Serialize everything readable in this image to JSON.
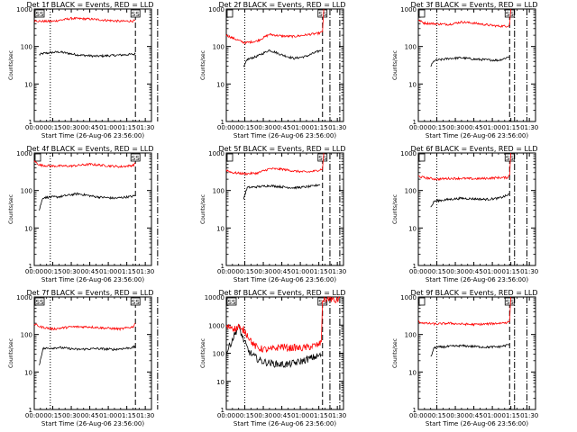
{
  "chart_data": [
    {
      "type": "line",
      "title": "Det 1f BLACK = Events, RED = LLD",
      "xlabel": "Start Time (26-Aug-06 23:56:00)",
      "ylabel": "Counts/sec",
      "xticks": [
        "00:00",
        "00:15",
        "00:30",
        "00:45",
        "01:00",
        "01:15",
        "01:30"
      ],
      "yticks": [
        "1",
        "10",
        "100",
        "1000"
      ],
      "ylim": [
        1,
        1000
      ],
      "yscale": "log",
      "markers": [
        "SS",
        "SS"
      ],
      "series": [
        {
          "color": "#000000",
          "x": [
            4,
            7,
            20,
            35,
            50,
            65,
            80,
            82
          ],
          "y": [
            60,
            65,
            72,
            60,
            55,
            58,
            62,
            63
          ]
        },
        {
          "color": "#ff0000",
          "x": [
            0,
            5,
            15,
            30,
            45,
            55,
            70,
            80,
            82
          ],
          "y": [
            500,
            470,
            470,
            560,
            540,
            510,
            470,
            480,
            490
          ]
        }
      ]
    },
    {
      "type": "line",
      "title": "Det 2f BLACK = Events, RED = LLD",
      "xlabel": "Start Time (26-Aug-06 23:56:00)",
      "ylabel": "Counts/sec",
      "xticks": [
        "00:00",
        "00:15",
        "00:30",
        "00:45",
        "01:00",
        "01:15",
        "01:30"
      ],
      "yticks": [
        "1",
        "10",
        "100",
        "1000"
      ],
      "ylim": [
        1,
        1000
      ],
      "yscale": "log",
      "markers": [
        "SS"
      ],
      "series": [
        {
          "color": "#000000",
          "x": [
            14,
            17,
            25,
            35,
            45,
            55,
            65,
            70,
            75,
            77
          ],
          "y": [
            27,
            45,
            55,
            80,
            60,
            48,
            55,
            65,
            75,
            80
          ]
        },
        {
          "color": "#ff0000",
          "x": [
            0,
            5,
            10,
            15,
            25,
            35,
            45,
            55,
            65,
            75,
            78,
            79
          ],
          "y": [
            200,
            170,
            145,
            125,
            140,
            210,
            190,
            185,
            205,
            225,
            245,
            1000
          ]
        }
      ]
    },
    {
      "type": "line",
      "title": "Det 3f BLACK = Events, RED = LLD",
      "xlabel": "Start Time (26-Aug-06 23:56:00)",
      "ylabel": "Counts/sec",
      "xticks": [
        "00:00",
        "00:15",
        "00:30",
        "00:45",
        "01:00",
        "01:15",
        "01:30"
      ],
      "yticks": [
        "1",
        "10",
        "100",
        "1000"
      ],
      "ylim": [
        1,
        1000
      ],
      "yscale": "log",
      "markers": [
        "SS"
      ],
      "series": [
        {
          "color": "#000000",
          "x": [
            10,
            13,
            25,
            35,
            45,
            55,
            65,
            70,
            74
          ],
          "y": [
            30,
            42,
            48,
            50,
            46,
            44,
            43,
            48,
            55
          ]
        },
        {
          "color": "#ff0000",
          "x": [
            0,
            5,
            15,
            25,
            35,
            45,
            55,
            65,
            72,
            74,
            75
          ],
          "y": [
            500,
            420,
            400,
            390,
            450,
            420,
            380,
            350,
            350,
            380,
            1000
          ]
        }
      ]
    },
    {
      "type": "line",
      "title": "Det 4f BLACK = Events, RED = LLD",
      "xlabel": "Start Time (26-Aug-06 23:56:00)",
      "ylabel": "Counts/sec",
      "xticks": [
        "00:00",
        "00:15",
        "00:30",
        "00:45",
        "01:00",
        "01:15",
        "01:30"
      ],
      "yticks": [
        "1",
        "10",
        "100",
        "1000"
      ],
      "ylim": [
        1,
        1000
      ],
      "yscale": "log",
      "markers": [
        "SS"
      ],
      "series": [
        {
          "color": "#000000",
          "x": [
            4,
            7,
            20,
            35,
            50,
            65,
            80,
            82
          ],
          "y": [
            30,
            65,
            68,
            82,
            68,
            62,
            70,
            75
          ]
        },
        {
          "color": "#ff0000",
          "x": [
            0,
            5,
            15,
            30,
            45,
            55,
            70,
            80,
            82
          ],
          "y": [
            600,
            470,
            450,
            450,
            500,
            470,
            430,
            470,
            520
          ]
        }
      ]
    },
    {
      "type": "line",
      "title": "Det 5f BLACK = Events, RED = LLD",
      "xlabel": "Start Time (26-Aug-06 23:56:00)",
      "ylabel": "Counts/sec",
      "xticks": [
        "00:00",
        "00:15",
        "00:30",
        "00:45",
        "01:00",
        "01:15",
        "01:30"
      ],
      "yticks": [
        "1",
        "10",
        "100",
        "1000"
      ],
      "ylim": [
        1,
        1000
      ],
      "yscale": "log",
      "markers": [
        "SS"
      ],
      "series": [
        {
          "color": "#000000",
          "x": [
            14,
            17,
            25,
            35,
            45,
            55,
            65,
            70,
            76
          ],
          "y": [
            60,
            120,
            125,
            135,
            125,
            118,
            125,
            130,
            145
          ]
        },
        {
          "color": "#ff0000",
          "x": [
            0,
            5,
            15,
            25,
            35,
            45,
            55,
            65,
            72,
            76,
            78,
            79
          ],
          "y": [
            350,
            300,
            280,
            290,
            380,
            370,
            330,
            310,
            330,
            360,
            380,
            1000
          ]
        }
      ]
    },
    {
      "type": "line",
      "title": "Det 6f BLACK = Events, RED = LLD",
      "xlabel": "Start Time (26-Aug-06 23:56:00)",
      "ylabel": "Counts/sec",
      "xticks": [
        "00:00",
        "00:15",
        "00:30",
        "00:45",
        "01:00",
        "01:15",
        "01:30"
      ],
      "yticks": [
        "1",
        "10",
        "100",
        "1000"
      ],
      "ylim": [
        1,
        1000
      ],
      "yscale": "log",
      "markers": [
        "SS"
      ],
      "series": [
        {
          "color": "#000000",
          "x": [
            10,
            13,
            25,
            35,
            45,
            55,
            65,
            70,
            74
          ],
          "y": [
            35,
            52,
            58,
            62,
            60,
            58,
            62,
            70,
            80
          ]
        },
        {
          "color": "#ff0000",
          "x": [
            0,
            5,
            15,
            25,
            35,
            45,
            55,
            65,
            72,
            74,
            75
          ],
          "y": [
            240,
            220,
            200,
            210,
            210,
            205,
            210,
            220,
            220,
            260,
            1000
          ]
        }
      ]
    },
    {
      "type": "line",
      "title": "Det 7f BLACK = Events, RED = LLD",
      "xlabel": "Start Time (26-Aug-06 23:56:00)",
      "ylabel": "Counts/sec",
      "xticks": [
        "00:00",
        "00:15",
        "00:30",
        "00:45",
        "01:00",
        "01:15",
        "01:30"
      ],
      "yticks": [
        "1",
        "10",
        "100",
        "1000"
      ],
      "ylim": [
        1,
        1000
      ],
      "yscale": "log",
      "markers": [
        "SS",
        "SS"
      ],
      "series": [
        {
          "color": "#000000",
          "x": [
            4,
            7,
            20,
            35,
            50,
            65,
            80,
            82
          ],
          "y": [
            15,
            42,
            45,
            40,
            42,
            40,
            45,
            48
          ]
        },
        {
          "color": "#ff0000",
          "x": [
            0,
            5,
            15,
            30,
            45,
            55,
            70,
            80,
            82
          ],
          "y": [
            190,
            160,
            140,
            160,
            160,
            150,
            140,
            160,
            200
          ]
        }
      ]
    },
    {
      "type": "line",
      "title": "Det 8f BLACK = Events, RED = LLD",
      "xlabel": "Start Time (26-Aug-06 23:56:00)",
      "ylabel": "Counts/sec",
      "xticks": [
        "00:00",
        "00:15",
        "00:30",
        "00:45",
        "01:00",
        "01:15",
        "01:30"
      ],
      "yticks": [
        "1",
        "10",
        "100",
        "1000",
        "10000"
      ],
      "ylim": [
        1,
        10000
      ],
      "yscale": "log",
      "markers": [
        "SS",
        "SS"
      ],
      "series": [
        {
          "color": "#000000",
          "x": [
            0,
            4,
            8,
            10,
            14,
            18,
            22,
            26,
            30,
            35,
            40,
            45,
            50,
            55,
            60,
            65,
            70,
            75,
            77
          ],
          "y": [
            100,
            250,
            600,
            900,
            300,
            120,
            80,
            60,
            50,
            45,
            42,
            40,
            40,
            45,
            50,
            60,
            70,
            80,
            90
          ]
        },
        {
          "color": "#ff0000",
          "x": [
            0,
            4,
            8,
            10,
            12,
            14,
            18,
            22,
            26,
            30,
            35,
            40,
            45,
            50,
            55,
            60,
            65,
            70,
            75,
            77,
            78,
            84,
            88,
            92
          ],
          "y": [
            800,
            900,
            700,
            1000,
            600,
            700,
            400,
            200,
            150,
            140,
            130,
            150,
            180,
            150,
            160,
            150,
            160,
            180,
            200,
            250,
            8000,
            9000,
            7000,
            9000
          ]
        }
      ]
    },
    {
      "type": "line",
      "title": "Det 9f BLACK = Events, RED = LLD",
      "xlabel": "Start Time (26-Aug-06 23:56:00)",
      "ylabel": "Counts/sec",
      "xticks": [
        "00:00",
        "00:15",
        "00:30",
        "00:45",
        "01:00",
        "01:15",
        "01:30"
      ],
      "yticks": [
        "1",
        "10",
        "100",
        "1000"
      ],
      "ylim": [
        1,
        1000
      ],
      "yscale": "log",
      "markers": [
        "SS"
      ],
      "series": [
        {
          "color": "#000000",
          "x": [
            10,
            13,
            25,
            35,
            45,
            55,
            65,
            70,
            74
          ],
          "y": [
            25,
            45,
            48,
            50,
            48,
            46,
            47,
            50,
            55
          ]
        },
        {
          "color": "#ff0000",
          "x": [
            0,
            5,
            15,
            25,
            35,
            45,
            55,
            65,
            72,
            74,
            75
          ],
          "y": [
            220,
            200,
            190,
            200,
            190,
            185,
            190,
            200,
            210,
            230,
            1000
          ]
        }
      ]
    }
  ]
}
